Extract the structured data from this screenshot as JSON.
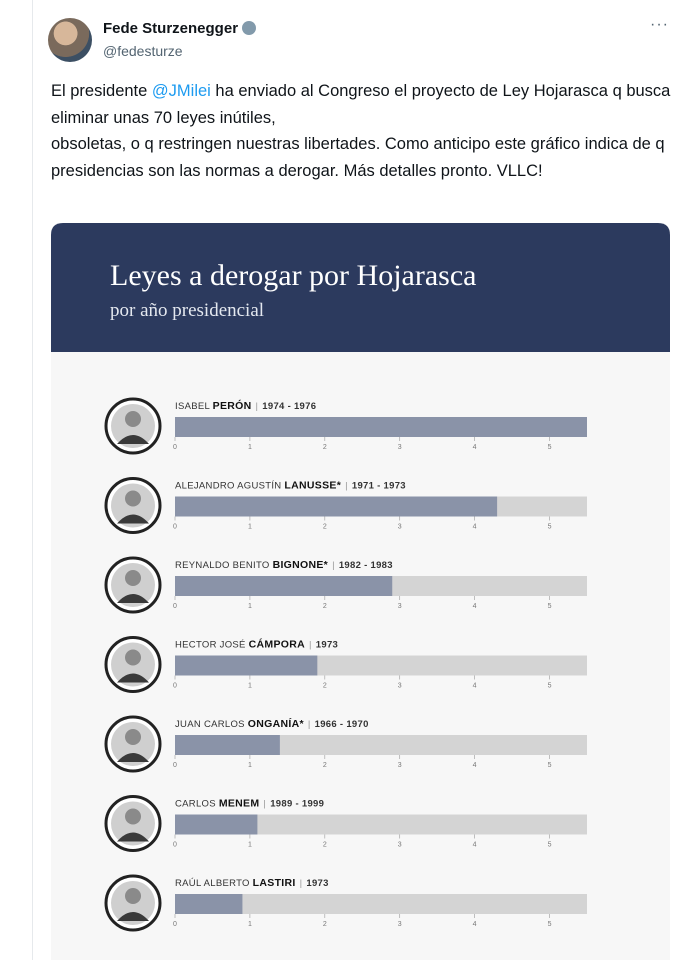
{
  "tweet": {
    "author": "Fede Sturzenegger",
    "handle": "@fedesturze",
    "menu": "···",
    "text_before": "El presidente ",
    "mention": "@JMilei",
    "text_line1_rest": " ha enviado al Congreso el proyecto de Ley Hojarasca q busca eliminar unas 70 leyes inútiles,",
    "text_line2": "obsoletas, o q restringen nuestras libertades. Como anticipo este gráfico indica de q presidencias son las normas a derogar. Más detalles pronto. VLLC!"
  },
  "chart_data": {
    "type": "bar",
    "title": "Leyes a derogar por Hojarasca",
    "subtitle": "por año presidencial",
    "categories": [
      {
        "first": "ISABEL",
        "last": "PERÓN",
        "years": "1974 - 1976"
      },
      {
        "first": "ALEJANDRO AGUSTÍN",
        "last": "LANUSSE*",
        "years": "1971 - 1973"
      },
      {
        "first": "REYNALDO BENITO",
        "last": "BIGNONE*",
        "years": "1982 - 1983"
      },
      {
        "first": "HECTOR JOSÉ",
        "last": "CÁMPORA",
        "years": "1973"
      },
      {
        "first": "JUAN CARLOS",
        "last": "ONGANÍA*",
        "years": "1966 - 1970"
      },
      {
        "first": "CARLOS",
        "last": "MENEM",
        "years": "1989 - 1999"
      },
      {
        "first": "RAÚL ALBERTO",
        "last": "LASTIRI",
        "years": "1973"
      }
    ],
    "values": [
      5.5,
      4.3,
      2.9,
      1.9,
      1.4,
      1.1,
      0.9
    ],
    "color": "#8a93a8",
    "track_color": "#d4d4d4",
    "header_color": "#2c3a5e",
    "xlim": [
      0,
      5.5
    ],
    "xticks": [
      0,
      1,
      2,
      3,
      4,
      5
    ]
  }
}
